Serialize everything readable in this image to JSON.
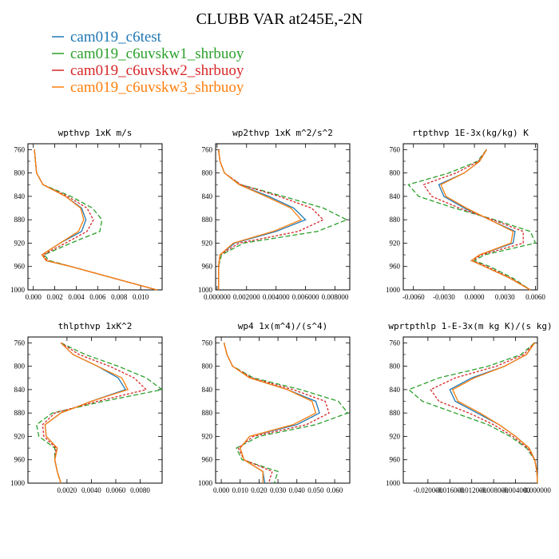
{
  "figure": {
    "title": "CLUBB VAR at245E,-2N"
  },
  "chart_data": [
    {
      "type": "line",
      "title": "wpthvp  1xK m/s",
      "xlim": [
        -0.0005,
        0.012
      ],
      "ylim": [
        1000,
        750
      ],
      "xticks": [
        "0.000",
        "0.002",
        "0.004",
        "0.006",
        "0.008",
        "0.010"
      ],
      "xtick_values": [
        0,
        0.002,
        0.004,
        0.006,
        0.008,
        0.01
      ],
      "y": [
        760,
        780,
        800,
        820,
        840,
        860,
        880,
        900,
        920,
        940,
        950,
        960,
        980,
        1000
      ],
      "series": [
        {
          "name": "cam019_c6test",
          "values": [
            0.0001,
            0.0002,
            0.0003,
            0.0009,
            0.003,
            0.0045,
            0.0049,
            0.0045,
            0.0025,
            0.0008,
            0.0012,
            0.0035,
            0.0075,
            0.0115
          ]
        },
        {
          "name": "cam019_c6uvskw1_shrbuoy",
          "values": [
            0.0001,
            0.0002,
            0.0003,
            0.0009,
            0.0035,
            0.0055,
            0.0064,
            0.0062,
            0.0035,
            0.001,
            0.0015,
            0.0035,
            0.0075,
            0.0115
          ]
        },
        {
          "name": "cam019_c6uvskw2_shrbuoy",
          "values": [
            0.0001,
            0.0002,
            0.0003,
            0.0009,
            0.0032,
            0.005,
            0.0056,
            0.005,
            0.003,
            0.0009,
            0.0013,
            0.0035,
            0.0075,
            0.0115
          ]
        },
        {
          "name": "cam019_c6uvskw3_shrbuoy",
          "values": [
            0.0001,
            0.0002,
            0.0003,
            0.0009,
            0.003,
            0.0044,
            0.0047,
            0.0042,
            0.0025,
            0.0008,
            0.0012,
            0.0035,
            0.0075,
            0.0115
          ]
        }
      ]
    },
    {
      "type": "line",
      "title": "wp2thvp  1xK m^2/s^2",
      "xlim": [
        -0.0001,
        0.009
      ],
      "ylim": [
        1000,
        750
      ],
      "xticks": [
        "0.000000",
        "0.002000",
        "0.004000",
        "0.006000",
        "0.008000"
      ],
      "xtick_values": [
        0,
        0.002,
        0.004,
        0.006,
        0.008
      ],
      "y": [
        760,
        780,
        800,
        820,
        840,
        860,
        880,
        900,
        920,
        940,
        960,
        980,
        1000
      ],
      "series": [
        {
          "name": "cam019_c6test",
          "values": [
            0.0001,
            0.0002,
            0.0005,
            0.0015,
            0.0035,
            0.0052,
            0.006,
            0.004,
            0.0012,
            0.0002,
            0.0001,
            0.0001,
            0.0001
          ]
        },
        {
          "name": "cam019_c6uvskw1_shrbuoy",
          "values": [
            0.0001,
            0.0002,
            0.0005,
            0.0016,
            0.0045,
            0.0072,
            0.0088,
            0.0068,
            0.0018,
            0.0003,
            0.0001,
            0.0001,
            0.0001
          ]
        },
        {
          "name": "cam019_c6uvskw2_shrbuoy",
          "values": [
            0.0001,
            0.0002,
            0.0005,
            0.0016,
            0.0042,
            0.0064,
            0.0072,
            0.0055,
            0.0015,
            0.0002,
            0.0001,
            0.0001,
            0.0001
          ]
        },
        {
          "name": "cam019_c6uvskw3_shrbuoy",
          "values": [
            0.0001,
            0.0002,
            0.0005,
            0.0015,
            0.0033,
            0.005,
            0.0057,
            0.0038,
            0.0011,
            0.0002,
            0.0001,
            0.0001,
            0.0001
          ]
        }
      ]
    },
    {
      "type": "line",
      "title": "rtpthvp  1E-3x(kg/kg) K",
      "xlim": [
        -0.007,
        0.0062
      ],
      "ylim": [
        1000,
        750
      ],
      "xticks": [
        "-0.0060",
        "-0.0030",
        "0.0000",
        "0.0030",
        "0.0060"
      ],
      "xtick_values": [
        -0.006,
        -0.003,
        0,
        0.003,
        0.006
      ],
      "y": [
        760,
        780,
        800,
        820,
        840,
        860,
        880,
        900,
        920,
        940,
        950,
        960,
        980,
        1000
      ],
      "series": [
        {
          "name": "cam019_c6test",
          "values": [
            0.0012,
            0.0005,
            -0.001,
            -0.0035,
            -0.003,
            -0.001,
            0.0015,
            0.004,
            0.0038,
            0.0005,
            -0.0003,
            0.001,
            0.0035,
            0.0055
          ]
        },
        {
          "name": "cam019_c6uvskw1_shrbuoy",
          "values": [
            0.0012,
            0.0003,
            -0.0025,
            -0.0065,
            -0.0055,
            -0.002,
            0.002,
            0.0055,
            0.006,
            0.001,
            0.0,
            0.0015,
            0.0038,
            0.0055
          ]
        },
        {
          "name": "cam019_c6uvskw2_shrbuoy",
          "values": [
            0.0012,
            0.0004,
            -0.0018,
            -0.005,
            -0.0042,
            -0.0015,
            0.0018,
            0.0048,
            0.0048,
            0.0007,
            -0.0002,
            0.0012,
            0.0036,
            0.0055
          ]
        },
        {
          "name": "cam019_c6uvskw3_shrbuoy",
          "values": [
            0.0012,
            0.0005,
            -0.001,
            -0.0033,
            -0.0028,
            -0.0008,
            0.0015,
            0.0038,
            0.0036,
            0.0005,
            -0.0003,
            0.001,
            0.0035,
            0.0055
          ]
        }
      ]
    },
    {
      "type": "line",
      "title": "thlpthvp  1xK^2",
      "xlim": [
        -0.0012,
        0.0098
      ],
      "ylim": [
        1000,
        750
      ],
      "xticks": [
        "0.0020",
        "0.0040",
        "0.0060",
        "0.0080"
      ],
      "xtick_values": [
        0.002,
        0.004,
        0.006,
        0.008
      ],
      "y": [
        760,
        780,
        800,
        820,
        840,
        860,
        880,
        900,
        920,
        940,
        960,
        980,
        1000
      ],
      "series": [
        {
          "name": "cam019_c6test",
          "values": [
            0.0015,
            0.0025,
            0.0045,
            0.0062,
            0.0068,
            0.004,
            0.0015,
            0.0002,
            0.0003,
            0.0012,
            0.001,
            0.0012,
            0.0015
          ]
        },
        {
          "name": "cam019_c6uvskw1_shrbuoy",
          "values": [
            0.0015,
            0.0035,
            0.0062,
            0.0085,
            0.0098,
            0.005,
            0.0008,
            -0.0005,
            -0.0003,
            0.001,
            0.001,
            0.0012,
            0.0015
          ]
        },
        {
          "name": "cam019_c6uvskw2_shrbuoy",
          "values": [
            0.0015,
            0.003,
            0.0055,
            0.0075,
            0.0085,
            0.0045,
            0.001,
            0.0,
            0.0001,
            0.0011,
            0.001,
            0.0012,
            0.0015
          ]
        },
        {
          "name": "cam019_c6uvskw3_shrbuoy",
          "values": [
            0.0015,
            0.0025,
            0.0045,
            0.0065,
            0.007,
            0.004,
            0.0015,
            0.0002,
            0.0003,
            0.0012,
            0.001,
            0.0012,
            0.0015
          ]
        }
      ]
    },
    {
      "type": "line",
      "title": "wp4  1x(m^4)/(s^4)",
      "xlim": [
        -0.003,
        0.068
      ],
      "ylim": [
        1000,
        750
      ],
      "xticks": [
        "0.000",
        "0.010",
        "0.020",
        "0.030",
        "0.040",
        "0.050",
        "0.060"
      ],
      "xtick_values": [
        0,
        0.01,
        0.02,
        0.03,
        0.04,
        0.05,
        0.06
      ],
      "y": [
        760,
        780,
        800,
        820,
        840,
        860,
        880,
        900,
        920,
        940,
        960,
        980,
        1000
      ],
      "series": [
        {
          "name": "cam019_c6test",
          "values": [
            0.0015,
            0.003,
            0.006,
            0.015,
            0.035,
            0.05,
            0.052,
            0.04,
            0.015,
            0.01,
            0.012,
            0.022,
            0.023
          ]
        },
        {
          "name": "cam019_c6uvskw1_shrbuoy",
          "values": [
            0.0015,
            0.003,
            0.006,
            0.017,
            0.042,
            0.062,
            0.067,
            0.05,
            0.02,
            0.008,
            0.011,
            0.03,
            0.028
          ]
        },
        {
          "name": "cam019_c6uvskw2_shrbuoy",
          "values": [
            0.0015,
            0.003,
            0.006,
            0.016,
            0.038,
            0.055,
            0.057,
            0.045,
            0.017,
            0.009,
            0.012,
            0.027,
            0.025
          ]
        },
        {
          "name": "cam019_c6uvskw3_shrbuoy",
          "values": [
            0.0015,
            0.003,
            0.006,
            0.015,
            0.035,
            0.048,
            0.05,
            0.038,
            0.015,
            0.01,
            0.012,
            0.022,
            0.022
          ]
        }
      ]
    },
    {
      "type": "line",
      "title": "wprtpthlp  1-E-3x(m kg K)/(s kg)",
      "xlim": [
        -0.0245,
        0.0
      ],
      "ylim": [
        1000,
        750
      ],
      "xticks": [
        "-0.020000",
        "-0.016000",
        "-0.012000",
        "-0.008000",
        "-0.004000",
        "0.000000"
      ],
      "xtick_values": [
        -0.02,
        -0.016,
        -0.012,
        -0.008,
        -0.004,
        0
      ],
      "y": [
        760,
        780,
        800,
        820,
        840,
        860,
        880,
        900,
        920,
        940,
        960,
        980,
        1000
      ],
      "series": [
        {
          "name": "cam019_c6test",
          "values": [
            -0.0005,
            -0.002,
            -0.006,
            -0.012,
            -0.016,
            -0.015,
            -0.011,
            -0.007,
            -0.004,
            -0.0015,
            -0.0005,
            -0.0001,
            0.0
          ]
        },
        {
          "name": "cam019_c6uvskw1_shrbuoy",
          "values": [
            -0.0005,
            -0.003,
            -0.009,
            -0.018,
            -0.0235,
            -0.021,
            -0.015,
            -0.009,
            -0.005,
            -0.002,
            -0.0005,
            -0.0001,
            0.0
          ]
        },
        {
          "name": "cam019_c6uvskw2_shrbuoy",
          "values": [
            -0.0005,
            -0.0025,
            -0.0075,
            -0.015,
            -0.0195,
            -0.018,
            -0.0125,
            -0.008,
            -0.0045,
            -0.0018,
            -0.0005,
            -0.0001,
            0.0
          ]
        },
        {
          "name": "cam019_c6uvskw3_shrbuoy",
          "values": [
            -0.0005,
            -0.002,
            -0.006,
            -0.0115,
            -0.0155,
            -0.0145,
            -0.0105,
            -0.007,
            -0.004,
            -0.0015,
            -0.0005,
            -0.0001,
            0.0
          ]
        }
      ]
    }
  ],
  "yticks": [
    "760",
    "800",
    "840",
    "880",
    "920",
    "960",
    "1000"
  ],
  "ytick_values": [
    760,
    800,
    840,
    880,
    920,
    960,
    1000
  ],
  "series_styles": [
    {
      "name": "cam019_c6test",
      "color": "#1f77b4",
      "dash": ""
    },
    {
      "name": "cam019_c6uvskw1_shrbuoy",
      "color": "#2ca02c",
      "dash": "6,3"
    },
    {
      "name": "cam019_c6uvskw2_shrbuoy",
      "color": "#d62728",
      "dash": "3,2"
    },
    {
      "name": "cam019_c6uvskw3_shrbuoy",
      "color": "#ff7f0e",
      "dash": ""
    }
  ],
  "legend": {
    "items": [
      {
        "label": "cam019_c6test",
        "color": "#1f77b4"
      },
      {
        "label": "cam019_c6uvskw1_shrbuoy",
        "color": "#2ca02c"
      },
      {
        "label": "cam019_c6uvskw2_shrbuoy",
        "color": "#d62728"
      },
      {
        "label": "cam019_c6uvskw3_shrbuoy",
        "color": "#ff7f0e"
      }
    ]
  }
}
